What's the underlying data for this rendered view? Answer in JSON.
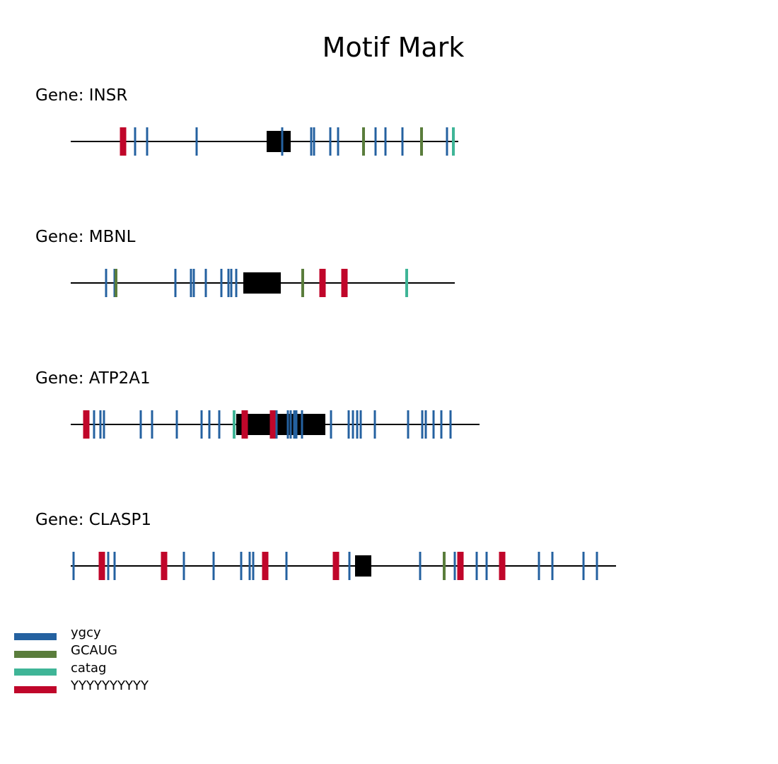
{
  "title": "Motif Mark",
  "motif_types": {
    "ygcy": {
      "label": "ygcy",
      "color": "#2461a0"
    },
    "GCAUG": {
      "label": "GCAUG",
      "color": "#5a7d3c"
    },
    "catag": {
      "label": "catag",
      "color": "#3fb597"
    },
    "YYYYYYYYYY": {
      "label": "YYYYYYYYYY",
      "color": "#c0062a"
    }
  },
  "legend": [
    {
      "motif": "ygcy",
      "label": "ygcy",
      "color": "#2461a0"
    },
    {
      "motif": "GCAUG",
      "label": "GCAUG",
      "color": "#5a7d3c"
    },
    {
      "motif": "catag",
      "label": "catag",
      "color": "#3fb597"
    },
    {
      "motif": "YYYYYYYYYY",
      "label": "YYYYYYYYYY",
      "color": "#c0062a"
    }
  ],
  "genes": [
    {
      "label": "Gene: INSR",
      "length": 548,
      "exon": {
        "start": 277,
        "end": 311
      },
      "motifs": [
        {
          "type": "YYYYYYYYYY",
          "pos": 74
        },
        {
          "type": "ygcy",
          "pos": 91
        },
        {
          "type": "ygcy",
          "pos": 108
        },
        {
          "type": "ygcy",
          "pos": 178
        },
        {
          "type": "ygcy",
          "pos": 299
        },
        {
          "type": "ygcy",
          "pos": 340
        },
        {
          "type": "ygcy",
          "pos": 344
        },
        {
          "type": "ygcy",
          "pos": 367
        },
        {
          "type": "ygcy",
          "pos": 378
        },
        {
          "type": "GCAUG",
          "pos": 414
        },
        {
          "type": "ygcy",
          "pos": 431
        },
        {
          "type": "ygcy",
          "pos": 445
        },
        {
          "type": "ygcy",
          "pos": 469
        },
        {
          "type": "GCAUG",
          "pos": 496
        },
        {
          "type": "ygcy",
          "pos": 532
        },
        {
          "type": "catag",
          "pos": 541
        }
      ]
    },
    {
      "label": "Gene: MBNL",
      "length": 543,
      "exon": {
        "start": 244,
        "end": 297
      },
      "motifs": [
        {
          "type": "ygcy",
          "pos": 50
        },
        {
          "type": "ygcy",
          "pos": 62
        },
        {
          "type": "GCAUG",
          "pos": 64
        },
        {
          "type": "ygcy",
          "pos": 148
        },
        {
          "type": "ygcy",
          "pos": 170
        },
        {
          "type": "ygcy",
          "pos": 174
        },
        {
          "type": "ygcy",
          "pos": 191
        },
        {
          "type": "ygcy",
          "pos": 213
        },
        {
          "type": "ygcy",
          "pos": 223
        },
        {
          "type": "ygcy",
          "pos": 227
        },
        {
          "type": "ygcy",
          "pos": 234
        },
        {
          "type": "GCAUG",
          "pos": 328
        },
        {
          "type": "YYYYYYYYYY",
          "pos": 356
        },
        {
          "type": "YYYYYYYYYY",
          "pos": 387
        },
        {
          "type": "catag",
          "pos": 475
        }
      ]
    },
    {
      "label": "Gene: ATP2A1",
      "length": 578,
      "exon": {
        "start": 234,
        "end": 360
      },
      "motifs": [
        {
          "type": "YYYYYYYYYY",
          "pos": 22
        },
        {
          "type": "ygcy",
          "pos": 33
        },
        {
          "type": "ygcy",
          "pos": 42
        },
        {
          "type": "ygcy",
          "pos": 47
        },
        {
          "type": "ygcy",
          "pos": 99
        },
        {
          "type": "ygcy",
          "pos": 115
        },
        {
          "type": "ygcy",
          "pos": 150
        },
        {
          "type": "ygcy",
          "pos": 185
        },
        {
          "type": "ygcy",
          "pos": 196
        },
        {
          "type": "ygcy",
          "pos": 210
        },
        {
          "type": "catag",
          "pos": 231
        },
        {
          "type": "YYYYYYYYYY",
          "pos": 246
        },
        {
          "type": "YYYYYYYYYY",
          "pos": 286
        },
        {
          "type": "ygcy",
          "pos": 291
        },
        {
          "type": "ygcy",
          "pos": 307
        },
        {
          "type": "ygcy",
          "pos": 311
        },
        {
          "type": "ygcy",
          "pos": 316
        },
        {
          "type": "ygcy",
          "pos": 319
        },
        {
          "type": "ygcy",
          "pos": 327
        },
        {
          "type": "ygcy",
          "pos": 368
        },
        {
          "type": "ygcy",
          "pos": 393
        },
        {
          "type": "ygcy",
          "pos": 399
        },
        {
          "type": "ygcy",
          "pos": 405
        },
        {
          "type": "ygcy",
          "pos": 410
        },
        {
          "type": "ygcy",
          "pos": 430
        },
        {
          "type": "ygcy",
          "pos": 477
        },
        {
          "type": "ygcy",
          "pos": 497
        },
        {
          "type": "ygcy",
          "pos": 502
        },
        {
          "type": "ygcy",
          "pos": 513
        },
        {
          "type": "ygcy",
          "pos": 524
        },
        {
          "type": "ygcy",
          "pos": 537
        }
      ]
    },
    {
      "label": "Gene: CLASP1",
      "length": 771,
      "exon": {
        "start": 402,
        "end": 425
      },
      "motifs": [
        {
          "type": "ygcy",
          "pos": 4
        },
        {
          "type": "YYYYYYYYYY",
          "pos": 44
        },
        {
          "type": "ygcy",
          "pos": 53
        },
        {
          "type": "ygcy",
          "pos": 62
        },
        {
          "type": "YYYYYYYYYY",
          "pos": 132
        },
        {
          "type": "ygcy",
          "pos": 160
        },
        {
          "type": "ygcy",
          "pos": 202
        },
        {
          "type": "ygcy",
          "pos": 241
        },
        {
          "type": "ygcy",
          "pos": 253
        },
        {
          "type": "ygcy",
          "pos": 258
        },
        {
          "type": "YYYYYYYYYY",
          "pos": 275
        },
        {
          "type": "ygcy",
          "pos": 305
        },
        {
          "type": "YYYYYYYYYY",
          "pos": 375
        },
        {
          "type": "ygcy",
          "pos": 394
        },
        {
          "type": "ygcy",
          "pos": 494
        },
        {
          "type": "GCAUG",
          "pos": 528
        },
        {
          "type": "ygcy",
          "pos": 543
        },
        {
          "type": "YYYYYYYYYY",
          "pos": 551
        },
        {
          "type": "ygcy",
          "pos": 574
        },
        {
          "type": "ygcy",
          "pos": 588
        },
        {
          "type": "YYYYYYYYYY",
          "pos": 610
        },
        {
          "type": "ygcy",
          "pos": 662
        },
        {
          "type": "ygcy",
          "pos": 681
        },
        {
          "type": "ygcy",
          "pos": 725
        },
        {
          "type": "ygcy",
          "pos": 744
        }
      ]
    }
  ]
}
